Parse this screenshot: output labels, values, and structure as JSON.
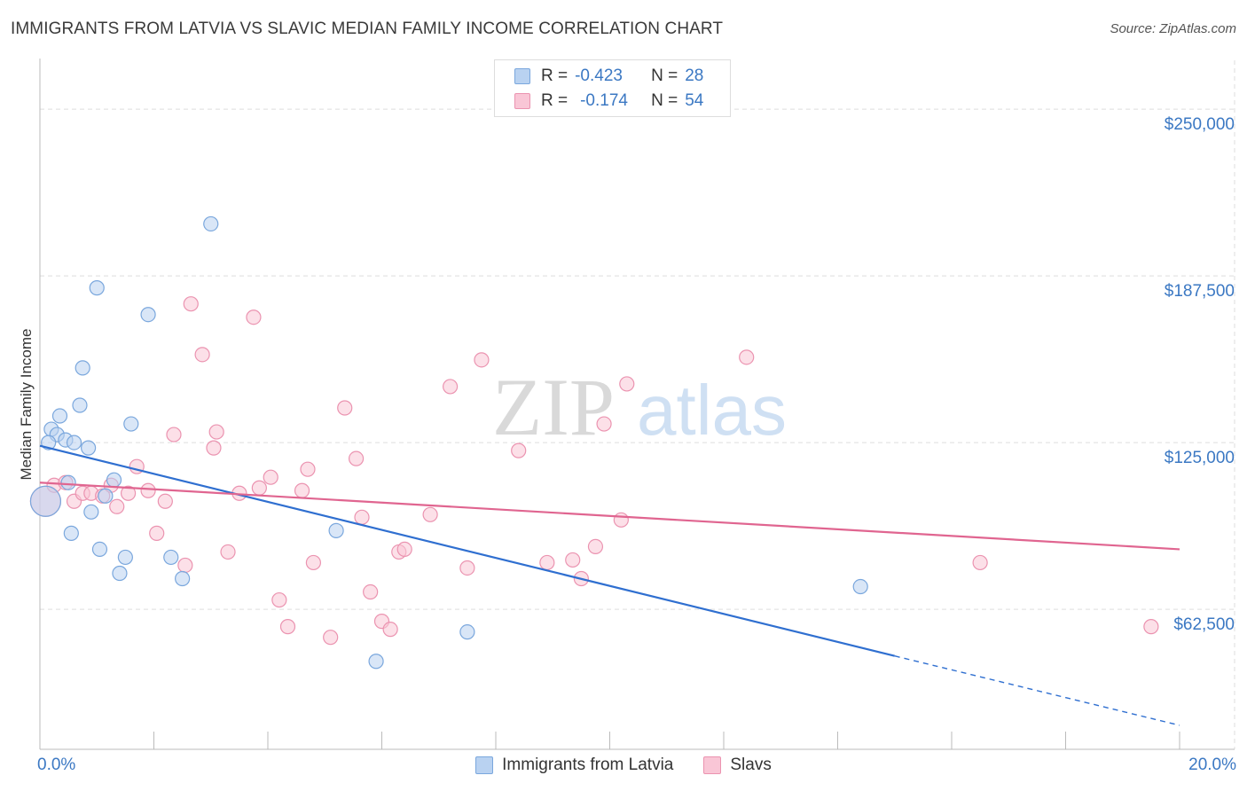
{
  "title": "IMMIGRANTS FROM LATVIA VS SLAVIC MEDIAN FAMILY INCOME CORRELATION CHART",
  "source": "Source: ZipAtlas.com",
  "watermark": {
    "zip": "ZIP",
    "atlas": "atlas"
  },
  "legend_top": [
    {
      "r_label": "R =",
      "r_value": "-0.423",
      "n_label": "N =",
      "n_value": "28"
    },
    {
      "r_label": "R =",
      "r_value": "-0.174",
      "n_label": "N =",
      "n_value": "54"
    }
  ],
  "colors": {
    "blue_fill": "#b9d2f1",
    "blue_stroke": "#7aa7dd",
    "blue_line": "#2f6fd0",
    "pink_fill": "#f9c6d6",
    "pink_stroke": "#eb93b0",
    "pink_line": "#e06590",
    "tick_text": "#3b78c3",
    "grid": "#dddddd"
  },
  "chart_data": {
    "type": "scatter",
    "title": "IMMIGRANTS FROM LATVIA VS SLAVIC MEDIAN FAMILY INCOME CORRELATION CHART",
    "xlabel": "",
    "ylabel": "Median Family Income",
    "xlim": [
      0,
      20
    ],
    "ylim": [
      10000,
      265000
    ],
    "x_ticks": [
      "0.0%",
      "20.0%"
    ],
    "y_ticks": [
      "$62,500",
      "$125,000",
      "$187,500",
      "$250,000"
    ],
    "y_tick_values": [
      62500,
      125000,
      187500,
      250000
    ],
    "grid": true,
    "legend_placement": "bottom",
    "series": [
      {
        "name": "Immigrants from Latvia",
        "color": "blue",
        "r": -0.423,
        "n": 28,
        "trend": {
          "x0": 0,
          "y0": 123800,
          "x1": 15,
          "y1": 45000,
          "dashed_to_x": 20,
          "dashed_to_y": 19000
        },
        "points": [
          [
            0.1,
            103000
          ],
          [
            0.2,
            130000
          ],
          [
            0.3,
            128000
          ],
          [
            0.35,
            135000
          ],
          [
            0.45,
            126000
          ],
          [
            0.5,
            110000
          ],
          [
            0.55,
            91000
          ],
          [
            0.6,
            125000
          ],
          [
            0.7,
            139000
          ],
          [
            0.75,
            153000
          ],
          [
            0.85,
            123000
          ],
          [
            0.9,
            99000
          ],
          [
            1.05,
            85000
          ],
          [
            1.0,
            183000
          ],
          [
            1.15,
            105000
          ],
          [
            1.3,
            111000
          ],
          [
            1.4,
            76000
          ],
          [
            1.5,
            82000
          ],
          [
            1.6,
            132000
          ],
          [
            1.9,
            173000
          ],
          [
            2.3,
            82000
          ],
          [
            2.5,
            74000
          ],
          [
            3.0,
            207000
          ],
          [
            5.2,
            92000
          ],
          [
            5.9,
            43000
          ],
          [
            7.5,
            54000
          ],
          [
            14.4,
            71000
          ],
          [
            0.15,
            125000
          ]
        ]
      },
      {
        "name": "Slavs",
        "color": "pink",
        "r": -0.174,
        "n": 54,
        "trend": {
          "x0": 0,
          "y0": 110000,
          "x1": 20,
          "y1": 85000
        },
        "points": [
          [
            0.1,
            103000
          ],
          [
            0.25,
            109000
          ],
          [
            0.45,
            110000
          ],
          [
            0.6,
            103000
          ],
          [
            0.75,
            106000
          ],
          [
            0.9,
            106000
          ],
          [
            1.1,
            105000
          ],
          [
            1.25,
            109000
          ],
          [
            1.35,
            101000
          ],
          [
            1.55,
            106000
          ],
          [
            1.7,
            116000
          ],
          [
            1.9,
            107000
          ],
          [
            2.05,
            91000
          ],
          [
            2.2,
            103000
          ],
          [
            2.35,
            128000
          ],
          [
            2.55,
            79000
          ],
          [
            2.65,
            177000
          ],
          [
            2.85,
            158000
          ],
          [
            3.1,
            129000
          ],
          [
            3.05,
            123000
          ],
          [
            3.3,
            84000
          ],
          [
            3.5,
            106000
          ],
          [
            3.75,
            172000
          ],
          [
            3.85,
            108000
          ],
          [
            4.05,
            112000
          ],
          [
            4.2,
            66000
          ],
          [
            4.35,
            56000
          ],
          [
            4.6,
            107000
          ],
          [
            4.7,
            115000
          ],
          [
            4.8,
            80000
          ],
          [
            5.1,
            52000
          ],
          [
            5.35,
            138000
          ],
          [
            5.55,
            119000
          ],
          [
            5.65,
            97000
          ],
          [
            5.8,
            69000
          ],
          [
            6.0,
            58000
          ],
          [
            6.15,
            55000
          ],
          [
            6.3,
            84000
          ],
          [
            6.4,
            85000
          ],
          [
            6.85,
            98000
          ],
          [
            7.2,
            146000
          ],
          [
            7.5,
            78000
          ],
          [
            7.75,
            156000
          ],
          [
            8.4,
            122000
          ],
          [
            8.9,
            80000
          ],
          [
            9.35,
            81000
          ],
          [
            9.5,
            74000
          ],
          [
            9.75,
            86000
          ],
          [
            9.9,
            132000
          ],
          [
            10.2,
            96000
          ],
          [
            10.3,
            147000
          ],
          [
            12.4,
            157000
          ],
          [
            16.5,
            80000
          ],
          [
            19.5,
            56000
          ]
        ]
      }
    ]
  }
}
